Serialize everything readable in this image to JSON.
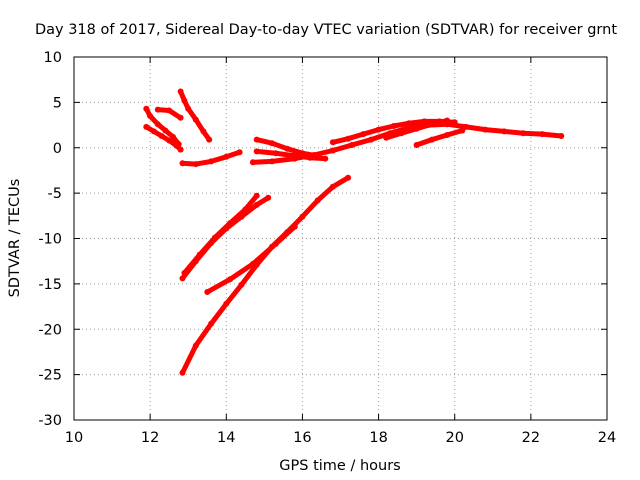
{
  "chart_data": {
    "type": "scatter",
    "title": "Day 318 of 2017, Sidereal Day-to-day VTEC variation (SDTVAR) for receiver grnt",
    "xlabel": "GPS time / hours",
    "ylabel": "SDTVAR / TECUs",
    "xlim": [
      10,
      24
    ],
    "ylim": [
      -30,
      10
    ],
    "xticks": [
      "10",
      "12",
      "14",
      "16",
      "18",
      "20",
      "22",
      "24"
    ],
    "yticks": [
      "10",
      "5",
      "0",
      "-5",
      "-10",
      "-15",
      "-20",
      "-25",
      "-30"
    ],
    "grid": true,
    "color": "#ff0000",
    "series": [
      {
        "x": [
          11.9,
          12.0,
          12.2,
          12.4,
          12.6,
          12.75
        ],
        "y": [
          4.3,
          3.5,
          2.6,
          1.9,
          1.2,
          0.4
        ]
      },
      {
        "x": [
          11.9,
          12.1,
          12.3,
          12.5,
          12.7,
          12.8
        ],
        "y": [
          2.3,
          1.8,
          1.3,
          0.8,
          0.2,
          -0.2
        ]
      },
      {
        "x": [
          12.2,
          12.5,
          12.8
        ],
        "y": [
          4.2,
          4.1,
          3.3
        ]
      },
      {
        "x": [
          12.8,
          12.9,
          13.0,
          13.2,
          13.4,
          13.55
        ],
        "y": [
          6.2,
          5.2,
          4.3,
          3.1,
          1.8,
          0.9
        ]
      },
      {
        "x": [
          12.85,
          13.2,
          13.6,
          14.0,
          14.35
        ],
        "y": [
          -1.7,
          -1.8,
          -1.5,
          -1.0,
          -0.5
        ]
      },
      {
        "x": [
          14.8,
          15.2,
          15.6,
          16.0,
          16.4
        ],
        "y": [
          0.9,
          0.5,
          -0.1,
          -0.6,
          -0.9
        ]
      },
      {
        "x": [
          14.8,
          15.3,
          15.8,
          16.2,
          16.6
        ],
        "y": [
          -0.4,
          -0.6,
          -0.9,
          -1.1,
          -1.2
        ]
      },
      {
        "x": [
          14.7,
          15.2,
          15.8,
          16.3,
          16.8,
          17.3,
          17.8,
          18.3,
          18.8,
          19.3,
          19.8,
          20.3,
          20.8,
          21.3,
          21.8,
          22.3,
          22.8
        ],
        "y": [
          -1.6,
          -1.5,
          -1.2,
          -0.8,
          -0.3,
          0.3,
          0.9,
          1.6,
          2.2,
          2.5,
          2.6,
          2.3,
          2.0,
          1.8,
          1.6,
          1.5,
          1.3
        ]
      },
      {
        "x": [
          16.8,
          17.2,
          17.6,
          18.0,
          18.4,
          18.8,
          19.2,
          19.6,
          20.0
        ],
        "y": [
          0.6,
          1.0,
          1.5,
          2.0,
          2.4,
          2.7,
          2.9,
          2.9,
          2.8
        ]
      },
      {
        "x": [
          18.2,
          18.6,
          19.0,
          19.4,
          19.8
        ],
        "y": [
          1.1,
          1.6,
          2.1,
          2.6,
          3.0
        ]
      },
      {
        "x": [
          19.0,
          19.4,
          19.8,
          20.2
        ],
        "y": [
          0.3,
          0.9,
          1.4,
          1.9
        ]
      },
      {
        "x": [
          12.9,
          13.3,
          13.7,
          14.1,
          14.5,
          14.8
        ],
        "y": [
          -13.8,
          -11.8,
          -9.9,
          -8.3,
          -6.8,
          -5.3
        ]
      },
      {
        "x": [
          12.85,
          13.2,
          13.6,
          14.0,
          14.4,
          14.8,
          15.1
        ],
        "y": [
          -14.4,
          -12.5,
          -10.5,
          -8.9,
          -7.6,
          -6.3,
          -5.5
        ]
      },
      {
        "x": [
          13.5,
          14.1,
          14.7,
          15.3,
          15.8
        ],
        "y": [
          -15.9,
          -14.5,
          -12.8,
          -10.6,
          -8.7
        ]
      },
      {
        "x": [
          12.85,
          13.2,
          13.6,
          14.0,
          14.4,
          14.8,
          15.2,
          15.6,
          16.0,
          16.4,
          16.8,
          17.2
        ],
        "y": [
          -24.8,
          -21.8,
          -19.4,
          -17.2,
          -15.1,
          -12.9,
          -10.9,
          -9.3,
          -7.6,
          -5.8,
          -4.3,
          -3.3
        ]
      }
    ]
  }
}
